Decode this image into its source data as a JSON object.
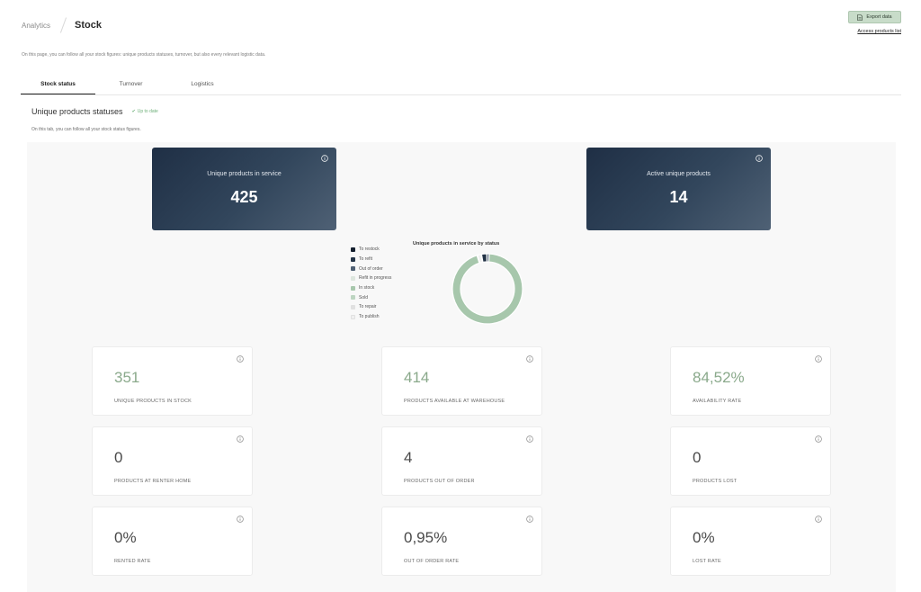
{
  "breadcrumb": {
    "parent": "Analytics",
    "current": "Stock"
  },
  "header": {
    "export_label": "Export data",
    "access_link": "Access products list"
  },
  "intro": "On this page, you can follow all your stock figures: unique products statuses, turnover, but also every relevant logistic data.",
  "tabs": [
    {
      "label": "Stock status",
      "active": true
    },
    {
      "label": "Turnover",
      "active": false
    },
    {
      "label": "Logistics",
      "active": false
    }
  ],
  "section": {
    "title": "Unique products statuses",
    "status": "Up to date",
    "description": "On this tab, you can follow all your stock status figures."
  },
  "heroes": [
    {
      "label": "Unique products in service",
      "value": "425"
    },
    {
      "label": "Active unique products",
      "value": "14"
    }
  ],
  "chart_data": {
    "type": "pie",
    "title": "Unique products in service by status",
    "categories": [
      "To restock",
      "To refit",
      "Out of order",
      "Refit in progress",
      "In stock",
      "Sold",
      "To repair",
      "To publish"
    ],
    "values": [
      1,
      9,
      4,
      0,
      351,
      0,
      1,
      6
    ],
    "colors": [
      "#141f2e",
      "#243447",
      "#4e5f73",
      "#dde6de",
      "#a7c7ac",
      "#bdd5c1",
      "#e1e1e1",
      "#f0f0f0"
    ],
    "legend_position": "left"
  },
  "cards": [
    {
      "value": "351",
      "label": "UNIQUE PRODUCTS IN STOCK",
      "color": "#8aa98b"
    },
    {
      "value": "414",
      "label": "PRODUCTS AVAILABLE AT WAREHOUSE",
      "color": "#8aa98b"
    },
    {
      "value": "84,52%",
      "label": "AVAILABILITY RATE",
      "color": "#8aa98b"
    },
    {
      "value": "0",
      "label": "PRODUCTS AT RENTER HOME",
      "color": "#4a4a4a"
    },
    {
      "value": "4",
      "label": "PRODUCTS OUT OF ORDER",
      "color": "#4a4a4a"
    },
    {
      "value": "0",
      "label": "PRODUCTS LOST",
      "color": "#4a4a4a"
    },
    {
      "value": "0%",
      "label": "RENTED RATE",
      "color": "#4a4a4a"
    },
    {
      "value": "0,95%",
      "label": "OUT OF ORDER RATE",
      "color": "#4a4a4a"
    },
    {
      "value": "0%",
      "label": "LOST RATE",
      "color": "#4a4a4a"
    }
  ]
}
